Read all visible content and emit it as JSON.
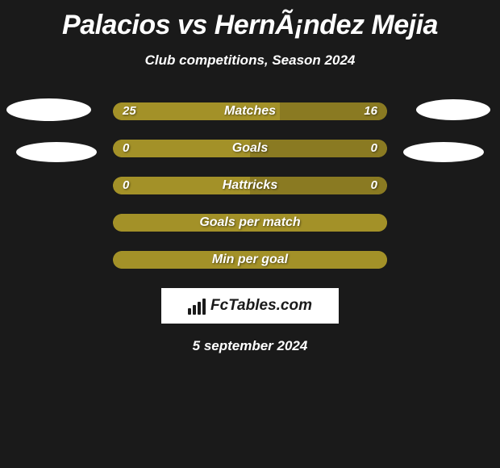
{
  "title": "Palacios vs HernÃ¡ndez Mejia",
  "subtitle": "Club competitions, Season 2024",
  "footer_date": "5 september 2024",
  "logo_text": "FcTables.com",
  "colors": {
    "background": "#1a1a1a",
    "bar_olive": "#a39128",
    "bar_olive_dark": "#8a7a22",
    "text": "#ffffff",
    "ellipse": "#ffffff"
  },
  "rows": [
    {
      "label": "Matches",
      "left_value": "25",
      "right_value": "16",
      "left_pct": 61,
      "right_pct": 39,
      "left_color": "#a39128",
      "right_color": "#8a7a22",
      "show_values": true
    },
    {
      "label": "Goals",
      "left_value": "0",
      "right_value": "0",
      "left_pct": 50,
      "right_pct": 50,
      "left_color": "#a39128",
      "right_color": "#8a7a22",
      "show_values": true
    },
    {
      "label": "Hattricks",
      "left_value": "0",
      "right_value": "0",
      "left_pct": 50,
      "right_pct": 50,
      "left_color": "#a39128",
      "right_color": "#8a7a22",
      "show_values": true
    },
    {
      "label": "Goals per match",
      "left_value": "",
      "right_value": "",
      "left_pct": 100,
      "right_pct": 0,
      "left_color": "#a39128",
      "right_color": "#a39128",
      "show_values": false
    },
    {
      "label": "Min per goal",
      "left_value": "",
      "right_value": "",
      "left_pct": 100,
      "right_pct": 0,
      "left_color": "#a39128",
      "right_color": "#a39128",
      "show_values": false
    }
  ]
}
